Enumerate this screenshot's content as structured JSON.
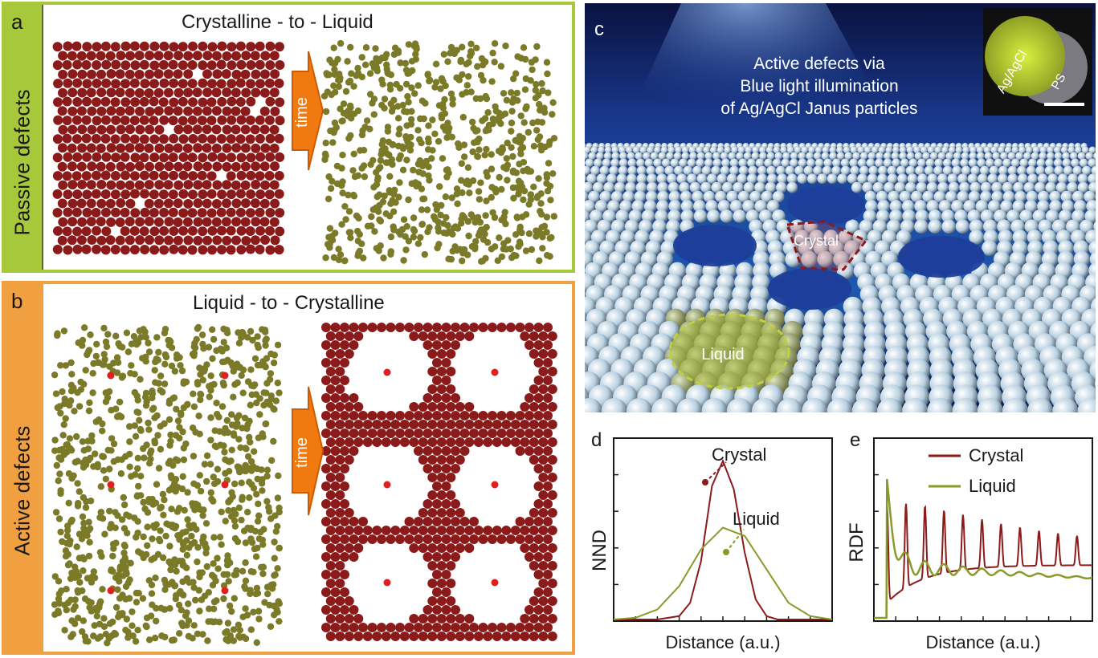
{
  "panel_a": {
    "letter": "a",
    "side_label": "Passive defects",
    "title": "Crystalline - to - Liquid",
    "arrow_label": "time",
    "colors": {
      "frame": "#a8c83c",
      "crystal": "#8b1a1a",
      "liquid": "#7a7a28"
    }
  },
  "panel_b": {
    "letter": "b",
    "side_label": "Active defects",
    "title": "Liquid - to - Crystalline",
    "arrow_label": "time",
    "colors": {
      "frame": "#f0a040",
      "defect": "#e02020"
    }
  },
  "panel_c": {
    "letter": "c",
    "caption_line1": "Active defects via",
    "caption_line2": "Blue light illumination",
    "caption_line3": "of  Ag/AgCl Janus particles",
    "inset_label1": "Ag/AgCl",
    "inset_label2": "PS",
    "crystal_label": "Crystal",
    "liquid_label": "Liquid"
  },
  "chart_data": [
    {
      "type": "line",
      "panel": "d",
      "xlabel": "Distance (a.u.)",
      "ylabel": "NND",
      "series": [
        {
          "name": "Crystal",
          "color": "#8b1a1a",
          "x": [
            0.0,
            0.2,
            0.3,
            0.35,
            0.4,
            0.45,
            0.5,
            0.55,
            0.6,
            0.65,
            0.7,
            0.75,
            0.8,
            0.9,
            1.0
          ],
          "y": [
            0.0,
            0.0,
            0.02,
            0.1,
            0.35,
            0.8,
            0.95,
            0.78,
            0.4,
            0.12,
            0.02,
            0.0,
            0.0,
            0.0,
            0.0
          ]
        },
        {
          "name": "Liquid",
          "color": "#8a9a2a",
          "x": [
            0.0,
            0.1,
            0.2,
            0.3,
            0.4,
            0.5,
            0.6,
            0.7,
            0.8,
            0.9,
            1.0
          ],
          "y": [
            0.0,
            0.01,
            0.06,
            0.2,
            0.42,
            0.55,
            0.5,
            0.3,
            0.1,
            0.02,
            0.0
          ]
        }
      ]
    },
    {
      "type": "line",
      "panel": "e",
      "xlabel": "Distance (a.u.)",
      "ylabel": "RDF",
      "series": [
        {
          "name": "Crystal",
          "color": "#8b1a1a"
        },
        {
          "name": "Liquid",
          "color": "#8a9a2a"
        }
      ]
    }
  ]
}
